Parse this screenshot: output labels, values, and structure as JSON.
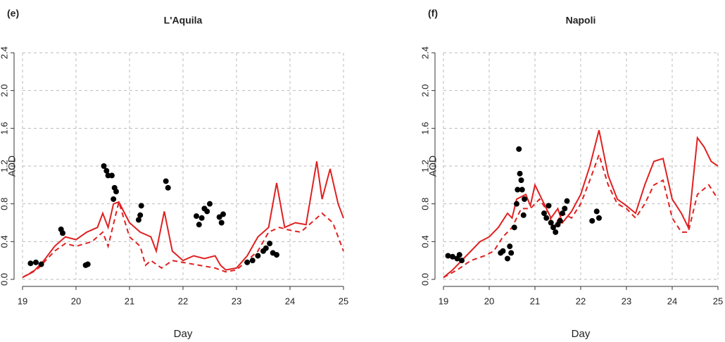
{
  "chart_data": [
    {
      "type": "line",
      "panel": "(e)",
      "title": "L'Aquila",
      "xlabel": "Day",
      "ylabel": "AOD",
      "xlim": [
        19,
        25
      ],
      "ylim": [
        0,
        2.4
      ],
      "xticks": [
        19,
        20,
        21,
        22,
        23,
        24,
        25
      ],
      "yticks": [
        {
          "value": 0,
          "label": "0.0"
        },
        0.4,
        0.8,
        1.2,
        1.6,
        {
          "value": 2,
          "label": "2.0"
        },
        2.4
      ],
      "grid": true,
      "series": [
        {
          "color": "#e02020",
          "style": "solid",
          "x": [
            19.0,
            19.2,
            19.4,
            19.6,
            19.8,
            20.0,
            20.2,
            20.4,
            20.5,
            20.6,
            20.7,
            20.8,
            21.0,
            21.2,
            21.4,
            21.5,
            21.65,
            21.8,
            22.0,
            22.2,
            22.4,
            22.6,
            22.7,
            22.8,
            23.0,
            23.2,
            23.4,
            23.6,
            23.75,
            23.9,
            24.1,
            24.3,
            24.5,
            24.6,
            24.75,
            24.9,
            25.0
          ],
          "values": [
            0.02,
            0.08,
            0.2,
            0.35,
            0.45,
            0.42,
            0.5,
            0.55,
            0.7,
            0.55,
            0.8,
            0.82,
            0.6,
            0.5,
            0.45,
            0.3,
            0.72,
            0.3,
            0.2,
            0.25,
            0.22,
            0.25,
            0.15,
            0.1,
            0.12,
            0.25,
            0.45,
            0.55,
            1.02,
            0.55,
            0.6,
            0.58,
            1.25,
            0.85,
            1.17,
            0.8,
            0.65
          ]
        },
        {
          "color": "#e02020",
          "style": "dashed",
          "x": [
            19.0,
            19.3,
            19.6,
            19.8,
            20.0,
            20.3,
            20.5,
            20.6,
            20.8,
            21.0,
            21.2,
            21.3,
            21.4,
            21.6,
            21.8,
            22.0,
            22.3,
            22.6,
            22.8,
            23.0,
            23.2,
            23.4,
            23.6,
            23.8,
            24.0,
            24.2,
            24.4,
            24.6,
            24.8,
            25.0
          ],
          "values": [
            0.02,
            0.12,
            0.3,
            0.38,
            0.35,
            0.4,
            0.5,
            0.35,
            0.82,
            0.45,
            0.35,
            0.15,
            0.2,
            0.12,
            0.2,
            0.18,
            0.15,
            0.12,
            0.08,
            0.1,
            0.2,
            0.3,
            0.5,
            0.55,
            0.52,
            0.5,
            0.6,
            0.7,
            0.6,
            0.3
          ]
        },
        {
          "type": "scatter",
          "color": "#000000",
          "x": [
            19.15,
            19.25,
            19.35,
            19.72,
            19.75,
            20.18,
            20.22,
            20.52,
            20.57,
            20.6,
            20.67,
            20.72,
            20.75,
            20.7,
            21.17,
            21.2,
            21.22,
            21.68,
            21.72,
            22.25,
            22.3,
            22.35,
            22.4,
            22.45,
            22.5,
            22.68,
            22.72,
            22.75,
            23.2,
            23.3,
            23.4,
            23.5,
            23.55,
            23.62,
            23.68,
            23.75
          ],
          "values": [
            0.17,
            0.18,
            0.16,
            0.53,
            0.49,
            0.15,
            0.16,
            1.2,
            1.15,
            1.1,
            1.1,
            0.97,
            0.93,
            0.85,
            0.63,
            0.68,
            0.78,
            1.04,
            0.97,
            0.67,
            0.58,
            0.65,
            0.75,
            0.72,
            0.8,
            0.66,
            0.6,
            0.69,
            0.18,
            0.2,
            0.25,
            0.3,
            0.33,
            0.38,
            0.28,
            0.26
          ]
        }
      ]
    },
    {
      "type": "line",
      "panel": "(f)",
      "title": "Napoli",
      "xlabel": "Day",
      "ylabel": "AOD",
      "xlim": [
        19,
        25
      ],
      "ylim": [
        0,
        2.4
      ],
      "xticks": [
        19,
        20,
        21,
        22,
        23,
        24,
        25
      ],
      "yticks": [
        {
          "value": 0,
          "label": "0.0"
        },
        0.4,
        0.8,
        1.2,
        1.6,
        {
          "value": 2,
          "label": "2.0"
        },
        2.4
      ],
      "grid": true,
      "series": [
        {
          "color": "#e02020",
          "style": "solid",
          "x": [
            19.0,
            19.2,
            19.5,
            19.8,
            20.0,
            20.2,
            20.4,
            20.5,
            20.6,
            20.8,
            20.9,
            21.0,
            21.2,
            21.35,
            21.5,
            21.6,
            21.8,
            22.0,
            22.2,
            22.4,
            22.6,
            22.8,
            23.0,
            23.2,
            23.4,
            23.6,
            23.8,
            24.0,
            24.2,
            24.35,
            24.55,
            24.7,
            24.85,
            25.0
          ],
          "values": [
            0.02,
            0.1,
            0.25,
            0.4,
            0.45,
            0.55,
            0.7,
            0.65,
            0.85,
            0.9,
            0.78,
            1.0,
            0.8,
            0.65,
            0.75,
            0.6,
            0.72,
            0.9,
            1.2,
            1.58,
            1.1,
            0.85,
            0.78,
            0.7,
            1.0,
            1.25,
            1.28,
            0.85,
            0.7,
            0.55,
            1.5,
            1.4,
            1.25,
            1.2
          ]
        },
        {
          "color": "#e02020",
          "style": "dashed",
          "x": [
            19.0,
            19.3,
            19.6,
            19.9,
            20.1,
            20.3,
            20.5,
            20.7,
            20.9,
            21.1,
            21.3,
            21.4,
            21.6,
            21.8,
            22.0,
            22.2,
            22.4,
            22.6,
            22.8,
            23.0,
            23.2,
            23.4,
            23.6,
            23.8,
            24.0,
            24.2,
            24.35,
            24.55,
            24.8,
            25.0
          ],
          "values": [
            0.02,
            0.1,
            0.2,
            0.25,
            0.3,
            0.45,
            0.55,
            0.75,
            0.75,
            0.85,
            0.7,
            0.55,
            0.7,
            0.65,
            0.8,
            1.05,
            1.32,
            1.0,
            0.8,
            0.75,
            0.65,
            0.8,
            1.0,
            1.05,
            0.65,
            0.5,
            0.5,
            0.9,
            1.0,
            0.85
          ]
        },
        {
          "type": "scatter",
          "color": "#000000",
          "x": [
            19.1,
            19.2,
            19.3,
            19.35,
            19.4,
            20.25,
            20.3,
            20.4,
            20.45,
            20.48,
            20.55,
            20.6,
            20.62,
            20.65,
            20.67,
            20.7,
            20.72,
            20.75,
            20.77,
            21.2,
            21.25,
            21.3,
            21.35,
            21.4,
            21.45,
            21.5,
            21.55,
            21.6,
            21.65,
            21.7,
            22.25,
            22.35,
            22.4
          ],
          "values": [
            0.25,
            0.24,
            0.22,
            0.26,
            0.2,
            0.28,
            0.3,
            0.22,
            0.35,
            0.28,
            0.55,
            0.8,
            0.95,
            1.38,
            1.12,
            1.05,
            0.95,
            0.68,
            0.85,
            0.7,
            0.65,
            0.78,
            0.6,
            0.55,
            0.5,
            0.58,
            0.62,
            0.7,
            0.75,
            0.83,
            0.62,
            0.72,
            0.65
          ]
        }
      ]
    }
  ]
}
